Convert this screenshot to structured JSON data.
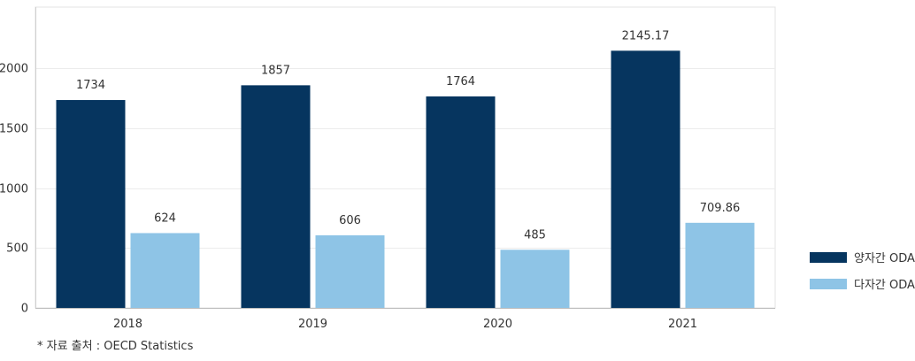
{
  "chart_data": {
    "type": "bar",
    "categories": [
      "2018",
      "2019",
      "2020",
      "2021"
    ],
    "series": [
      {
        "name": "양자간 ODA",
        "values": [
          1734,
          1857,
          1764,
          2145.17
        ],
        "labels": [
          "1734",
          "1857",
          "1764",
          "2145.17"
        ],
        "color": "#06355f"
      },
      {
        "name": "다자간 ODA",
        "values": [
          624,
          606,
          485,
          709.86
        ],
        "labels": [
          "624",
          "606",
          "485",
          "709.86"
        ],
        "color": "#8ec4e6"
      }
    ],
    "yticks": [
      0,
      500,
      1000,
      1500,
      2000
    ],
    "ytick_labels": [
      "0",
      "500",
      "1000",
      "1500",
      "2000"
    ],
    "ylim": [
      0,
      2500
    ],
    "grid": true,
    "legend_position": "right"
  },
  "source_note": "* 자료 출처 : OECD Statistics"
}
